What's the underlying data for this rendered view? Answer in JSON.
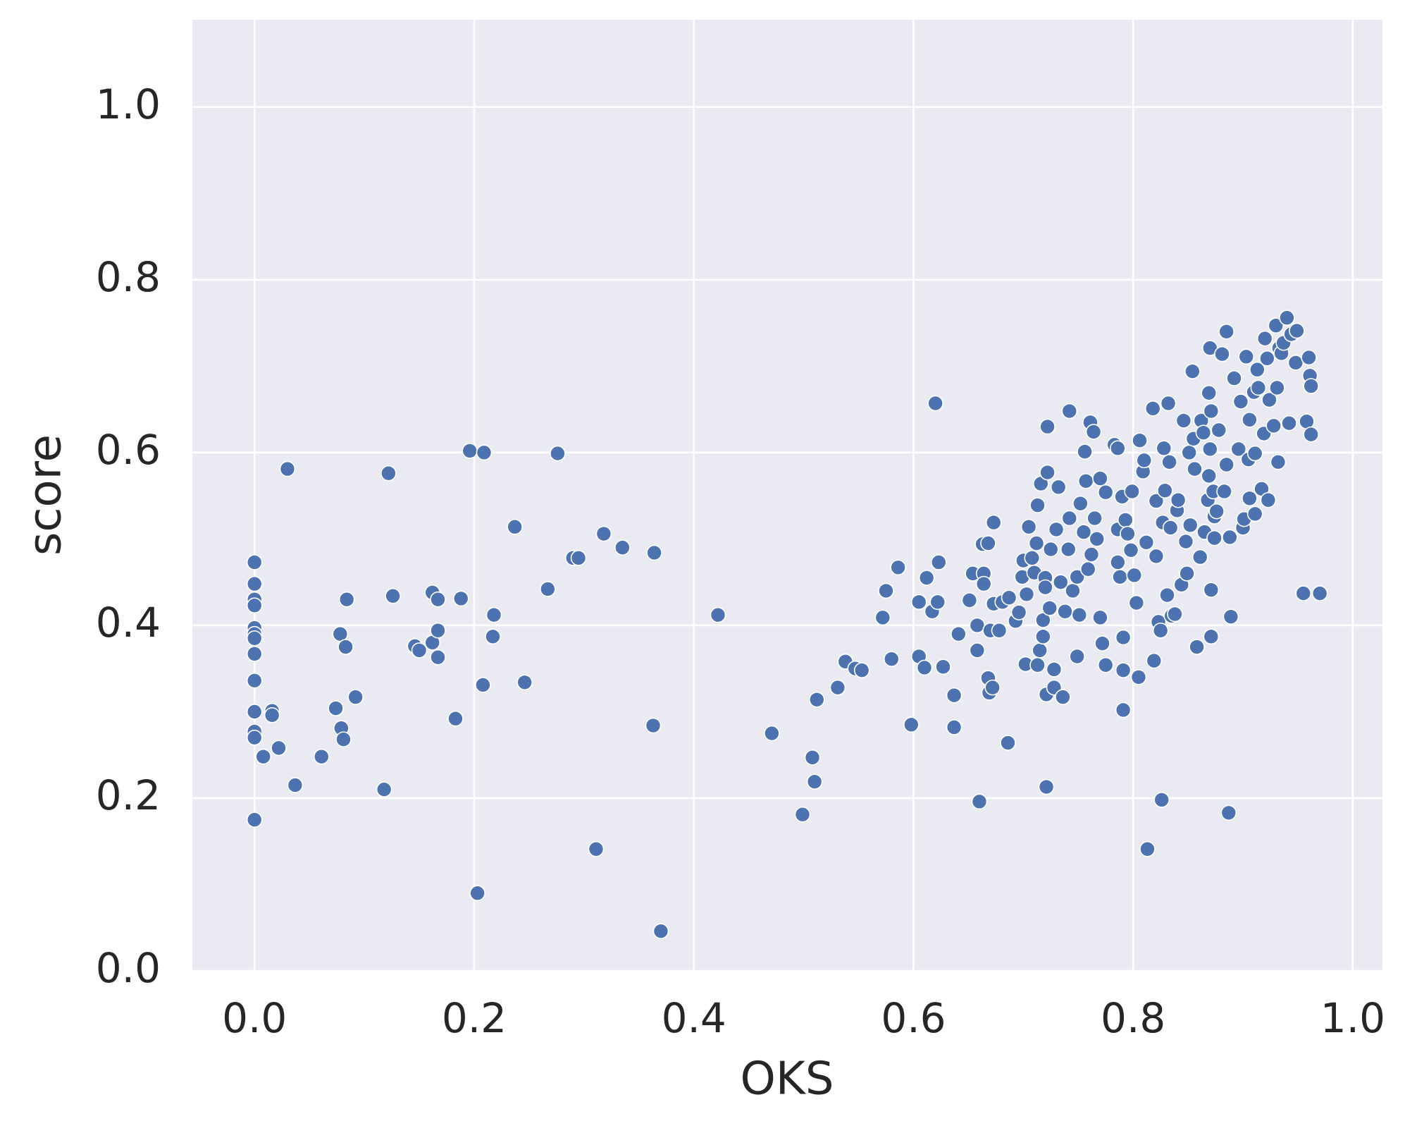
{
  "chart_data": {
    "type": "scatter",
    "x_label": "OKS",
    "y_label": "score",
    "color": "#4c72b0",
    "grid": true,
    "xlim": [
      -0.0566,
      1.027
    ],
    "ylim": [
      0,
      1.101
    ],
    "xticks": [
      {
        "value": 0,
        "label": "0.0"
      },
      0.2,
      0.4,
      0.6,
      0.8,
      {
        "value": 1,
        "label": "1.0"
      }
    ],
    "yticks": [
      {
        "value": 0,
        "label": "0.0"
      },
      0.2,
      0.4,
      0.6,
      0.8,
      {
        "value": 1,
        "label": "1.0"
      }
    ],
    "x": [
      0,
      0,
      0,
      0,
      0,
      0,
      0,
      0,
      0,
      0,
      0,
      0,
      0,
      0.03,
      0.122,
      0.016,
      0.016,
      0.008,
      0.022,
      0.037,
      0.061,
      0.074,
      0.078,
      0.079,
      0.081,
      0.083,
      0.084,
      0.092,
      0.118,
      0.126,
      0.146,
      0.15,
      0.162,
      0.162,
      0.167,
      0.167,
      0.167,
      0.183,
      0.188,
      0.196,
      0.209,
      0.203,
      0.208,
      0.217,
      0.218,
      0.237,
      0.246,
      0.267,
      0.276,
      0.29,
      0.295,
      0.311,
      0.318,
      0.335,
      0.363,
      0.364,
      0.37,
      0.422,
      0.471,
      0.499,
      0.508,
      0.51,
      0.512,
      0.531,
      0.538,
      0.547,
      0.553,
      0.572,
      0.575,
      0.58,
      0.586,
      0.598,
      0.605,
      0.605,
      0.61,
      0.612,
      0.617,
      0.62,
      0.622,
      0.623,
      0.627,
      0.637,
      0.637,
      0.641,
      0.651,
      0.654,
      0.658,
      0.658,
      0.66,
      0.663,
      0.664,
      0.664,
      0.668,
      0.668,
      0.669,
      0.672,
      0.67,
      0.673,
      0.673,
      0.678,
      0.681,
      0.686,
      0.687,
      0.693,
      0.696,
      0.699,
      0.7,
      0.702,
      0.703,
      0.705,
      0.708,
      0.71,
      0.712,
      0.713,
      0.713,
      0.715,
      0.716,
      0.718,
      0.718,
      0.72,
      0.72,
      0.721,
      0.721,
      0.722,
      0.722,
      0.724,
      0.725,
      0.728,
      0.728,
      0.73,
      0.732,
      0.734,
      0.736,
      0.738,
      0.741,
      0.742,
      0.742,
      0.745,
      0.749,
      0.749,
      0.751,
      0.752,
      0.755,
      0.756,
      0.757,
      0.759,
      0.761,
      0.762,
      0.764,
      0.765,
      0.767,
      0.77,
      0.77,
      0.772,
      0.775,
      0.775,
      0.783,
      0.786,
      0.786,
      0.786,
      0.788,
      0.79,
      0.791,
      0.791,
      0.791,
      0.793,
      0.795,
      0.798,
      0.799,
      0.801,
      0.803,
      0.805,
      0.806,
      0.809,
      0.81,
      0.812,
      0.813,
      0.818,
      0.819,
      0.821,
      0.821,
      0.823,
      0.825,
      0.826,
      0.827,
      0.828,
      0.829,
      0.831,
      0.832,
      0.833,
      0.834,
      0.835,
      0.838,
      0.84,
      0.841,
      0.844,
      0.846,
      0.848,
      0.849,
      0.851,
      0.852,
      0.854,
      0.855,
      0.856,
      0.858,
      0.861,
      0.862,
      0.864,
      0.865,
      0.868,
      0.869,
      0.869,
      0.87,
      0.87,
      0.871,
      0.871,
      0.871,
      0.873,
      0.874,
      0.874,
      0.876,
      0.878,
      0.881,
      0.883,
      0.885,
      0.885,
      0.887,
      0.888,
      0.889,
      0.892,
      0.896,
      0.898,
      0.9,
      0.901,
      0.903,
      0.905,
      0.906,
      0.906,
      0.91,
      0.911,
      0.911,
      0.913,
      0.914,
      0.917,
      0.919,
      0.92,
      0.922,
      0.923,
      0.924,
      0.928,
      0.93,
      0.931,
      0.932,
      0.933,
      0.935,
      0.937,
      0.94,
      0.942,
      0.944,
      0.948,
      0.949,
      0.955,
      0.958,
      0.96,
      0.961,
      0.962,
      0.962,
      0.97
    ],
    "values": [
      0.473,
      0.448,
      0.43,
      0.423,
      0.397,
      0.39,
      0.385,
      0.367,
      0.336,
      0.3,
      0.277,
      0.27,
      0.175,
      0.581,
      0.576,
      0.301,
      0.296,
      0.248,
      0.258,
      0.215,
      0.248,
      0.304,
      0.39,
      0.281,
      0.268,
      0.375,
      0.43,
      0.317,
      0.21,
      0.434,
      0.376,
      0.371,
      0.438,
      0.38,
      0.394,
      0.43,
      0.363,
      0.292,
      0.431,
      0.602,
      0.6,
      0.09,
      0.331,
      0.387,
      0.412,
      0.514,
      0.334,
      0.442,
      0.599,
      0.478,
      0.478,
      0.141,
      0.506,
      0.49,
      0.284,
      0.484,
      0.046,
      0.412,
      0.275,
      0.181,
      0.247,
      0.219,
      0.314,
      0.328,
      0.358,
      0.35,
      0.348,
      0.409,
      0.44,
      0.361,
      0.467,
      0.285,
      0.364,
      0.427,
      0.351,
      0.455,
      0.416,
      0.657,
      0.427,
      0.473,
      0.352,
      0.319,
      0.282,
      0.39,
      0.429,
      0.46,
      0.4,
      0.371,
      0.196,
      0.494,
      0.46,
      0.448,
      0.339,
      0.495,
      0.322,
      0.328,
      0.394,
      0.425,
      0.519,
      0.394,
      0.427,
      0.264,
      0.432,
      0.405,
      0.415,
      0.456,
      0.475,
      0.355,
      0.436,
      0.514,
      0.478,
      0.461,
      0.495,
      0.354,
      0.539,
      0.371,
      0.564,
      0.387,
      0.406,
      0.455,
      0.444,
      0.32,
      0.213,
      0.577,
      0.63,
      0.42,
      0.488,
      0.349,
      0.328,
      0.511,
      0.56,
      0.45,
      0.317,
      0.416,
      0.488,
      0.524,
      0.648,
      0.44,
      0.364,
      0.456,
      0.412,
      0.541,
      0.508,
      0.601,
      0.567,
      0.465,
      0.635,
      0.482,
      0.624,
      0.524,
      0.5,
      0.409,
      0.57,
      0.379,
      0.354,
      0.554,
      0.609,
      0.473,
      0.605,
      0.511,
      0.456,
      0.549,
      0.302,
      0.348,
      0.386,
      0.522,
      0.506,
      0.487,
      0.555,
      0.458,
      0.426,
      0.34,
      0.614,
      0.578,
      0.591,
      0.496,
      0.141,
      0.651,
      0.359,
      0.48,
      0.544,
      0.404,
      0.394,
      0.198,
      0.519,
      0.605,
      0.556,
      0.435,
      0.657,
      0.589,
      0.513,
      0.411,
      0.413,
      0.533,
      0.545,
      0.447,
      0.637,
      0.497,
      0.46,
      0.6,
      0.516,
      0.694,
      0.616,
      0.581,
      0.375,
      0.479,
      0.637,
      0.623,
      0.508,
      0.545,
      0.573,
      0.669,
      0.721,
      0.604,
      0.648,
      0.441,
      0.387,
      0.555,
      0.526,
      0.501,
      0.532,
      0.626,
      0.714,
      0.555,
      0.586,
      0.74,
      0.183,
      0.502,
      0.41,
      0.686,
      0.604,
      0.659,
      0.513,
      0.523,
      0.711,
      0.592,
      0.638,
      0.547,
      0.67,
      0.529,
      0.599,
      0.696,
      0.675,
      0.558,
      0.622,
      0.732,
      0.709,
      0.545,
      0.661,
      0.631,
      0.747,
      0.675,
      0.589,
      0.721,
      0.715,
      0.727,
      0.756,
      0.634,
      0.737,
      0.704,
      0.741,
      0.437,
      0.636,
      0.71,
      0.689,
      0.677,
      0.621,
      0.437
    ]
  }
}
